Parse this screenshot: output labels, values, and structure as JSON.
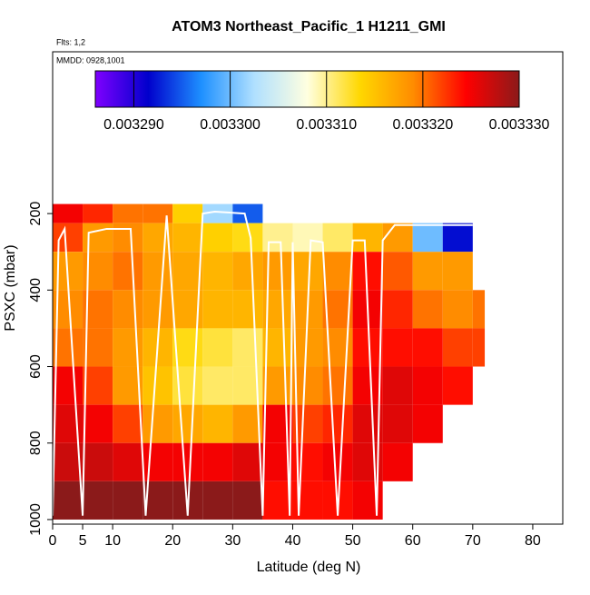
{
  "chart_data": {
    "type": "heatmap",
    "title": "ATOM3 Northeast_Pacific_1 H1211_GMI",
    "flights": "Flts: 1,2",
    "dates": "MMDD: 0928,1001",
    "xlabel": "Latitude (deg N)",
    "ylabel": "PSXC (mbar)",
    "xlim": [
      0,
      85
    ],
    "xticks": [
      0,
      5,
      10,
      20,
      30,
      40,
      50,
      60,
      70,
      80
    ],
    "ylim": [
      1012,
      -223
    ],
    "yticks": [
      200,
      400,
      600,
      800,
      1000
    ],
    "clim": [
      0.003286,
      0.00333
    ],
    "cticks": [
      {
        "value": 0.00329,
        "label": "0.003290"
      },
      {
        "value": 0.0033,
        "label": "0.003300"
      },
      {
        "value": 0.00331,
        "label": "0.003310"
      },
      {
        "value": 0.00332,
        "label": "0.003320"
      },
      {
        "value": 0.00333,
        "label": "0.003330"
      }
    ],
    "colorscale": [
      "#7f00ff",
      "#0000cc",
      "#1e90ff",
      "#b0e0ff",
      "#ffffe0",
      "#ffd700",
      "#ff8c00",
      "#ff0000",
      "#8b1a1a"
    ],
    "x_edges": [
      0,
      5,
      10,
      15,
      20,
      25,
      30,
      35,
      40,
      45,
      50,
      55,
      60,
      65,
      70,
      72
    ],
    "y_edges": [
      175,
      225,
      300,
      400,
      500,
      600,
      700,
      800,
      900,
      1000
    ],
    "z": [
      [
        0.003325,
        0.003323,
        0.00332,
        0.00332,
        0.003314,
        0.003302,
        0.003295,
        null,
        null,
        null,
        null,
        null,
        null,
        null,
        null
      ],
      [
        0.003322,
        0.003318,
        0.003319,
        0.003317,
        0.003316,
        0.003314,
        0.003313,
        0.00331,
        0.003309,
        0.003311,
        0.003316,
        0.003318,
        0.0033,
        0.003292,
        null
      ],
      [
        0.003318,
        0.003319,
        0.00332,
        0.003318,
        0.003317,
        0.003316,
        0.003317,
        0.003318,
        0.003317,
        0.003319,
        0.003324,
        0.003321,
        0.003318,
        0.003318,
        null
      ],
      [
        0.003319,
        0.00332,
        0.003319,
        0.003318,
        0.003317,
        0.003316,
        0.003316,
        0.003317,
        0.003318,
        0.00332,
        0.003325,
        0.003323,
        0.00332,
        0.003319,
        0.00332
      ],
      [
        0.00332,
        0.00332,
        0.003318,
        0.003316,
        0.003313,
        0.003312,
        0.003311,
        0.003316,
        0.003318,
        0.003319,
        0.003324,
        0.003324,
        0.003324,
        0.003322,
        0.003322
      ],
      [
        0.003325,
        0.003322,
        0.003318,
        0.003315,
        0.003312,
        0.003311,
        0.003311,
        0.003318,
        0.003319,
        0.00332,
        0.003325,
        0.003326,
        0.003325,
        0.003324,
        null
      ],
      [
        0.003326,
        0.003325,
        0.003322,
        0.003318,
        0.003317,
        0.003316,
        0.003318,
        0.003325,
        0.003322,
        0.003323,
        0.003326,
        0.003326,
        0.003325,
        null,
        null
      ],
      [
        0.003327,
        0.003327,
        0.003326,
        0.003325,
        0.003325,
        0.003325,
        0.003326,
        0.003325,
        0.003324,
        0.003325,
        0.003326,
        0.003325,
        null,
        null,
        null
      ],
      [
        0.00333,
        0.00333,
        0.00333,
        0.00333,
        0.00333,
        0.00333,
        0.00333,
        0.003324,
        0.003324,
        0.003324,
        0.003325,
        null,
        null,
        null,
        null
      ]
    ],
    "track": {
      "color": "#ffffff",
      "x": [
        0,
        1,
        2,
        5,
        6,
        9,
        13,
        15.5,
        19,
        22.5,
        25,
        27,
        32,
        33,
        35,
        36,
        38,
        39.5,
        40,
        41,
        43,
        45,
        47.5,
        50,
        52,
        54,
        55,
        57,
        70
      ],
      "y": [
        990,
        270,
        240,
        990,
        250,
        240,
        240,
        990,
        205,
        990,
        200,
        195,
        200,
        264,
        990,
        275,
        275,
        990,
        275,
        990,
        270,
        275,
        990,
        270,
        270,
        990,
        270,
        230,
        230
      ]
    }
  }
}
